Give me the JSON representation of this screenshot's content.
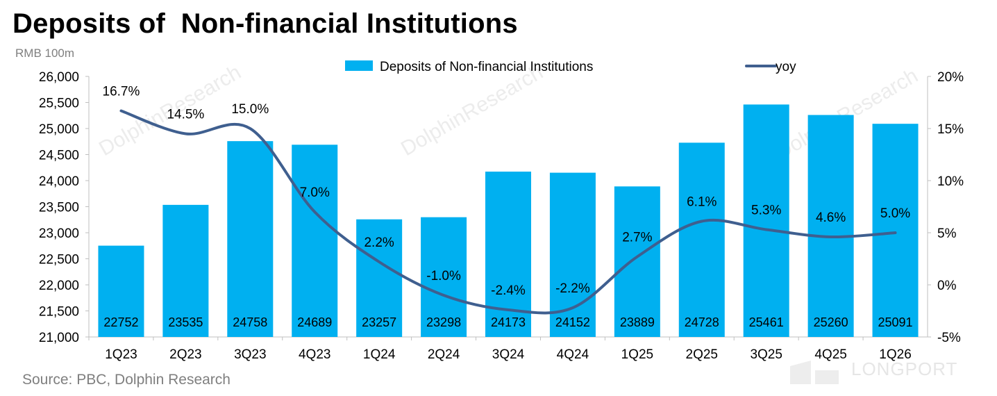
{
  "unit_label": "RMB 100m",
  "source": "Source: PBC, Dolphin Research",
  "watermark": {
    "text": "DolphinResearch",
    "brand": "LONGPORT"
  },
  "colors": {
    "bar": "#00b0f0",
    "line": "#3f5f8f",
    "axis": "#bfbfbf"
  },
  "chart_data": {
    "type": "bar",
    "title": "Deposits of  Non-financial Institutions",
    "categories": [
      "1Q23",
      "2Q23",
      "3Q23",
      "4Q23",
      "1Q24",
      "2Q24",
      "3Q24",
      "4Q24",
      "1Q25",
      "2Q25",
      "3Q25",
      "4Q25",
      "1Q26"
    ],
    "series": [
      {
        "name": "Deposits of  Non-financial Institutions",
        "type": "bar",
        "axis": "left",
        "values": [
          22752,
          23535,
          24758,
          24689,
          23257,
          23298,
          24173,
          24152,
          23889,
          24728,
          25461,
          25260,
          25091
        ]
      },
      {
        "name": "yoy",
        "type": "line",
        "axis": "right",
        "values": [
          16.7,
          14.5,
          15.0,
          7.0,
          2.2,
          -1.0,
          -2.4,
          -2.2,
          2.7,
          6.1,
          5.3,
          4.6,
          5.0
        ],
        "labels": [
          "16.7%",
          "14.5%",
          "15.0%",
          "7.0%",
          "2.2%",
          "-1.0%",
          "-2.4%",
          "-2.2%",
          "2.7%",
          "6.1%",
          "5.3%",
          "4.6%",
          "5.0%"
        ]
      }
    ],
    "y_left": {
      "min": 21000,
      "max": 26000,
      "ticks": [
        "21,000",
        "21,500",
        "22,000",
        "22,500",
        "23,000",
        "23,500",
        "24,000",
        "24,500",
        "25,000",
        "25,500",
        "26,000"
      ]
    },
    "y_right": {
      "min": -5,
      "max": 20,
      "ticks": [
        "-5%",
        "0%",
        "5%",
        "10%",
        "15%",
        "20%"
      ]
    },
    "legend": "top",
    "grid": false
  }
}
